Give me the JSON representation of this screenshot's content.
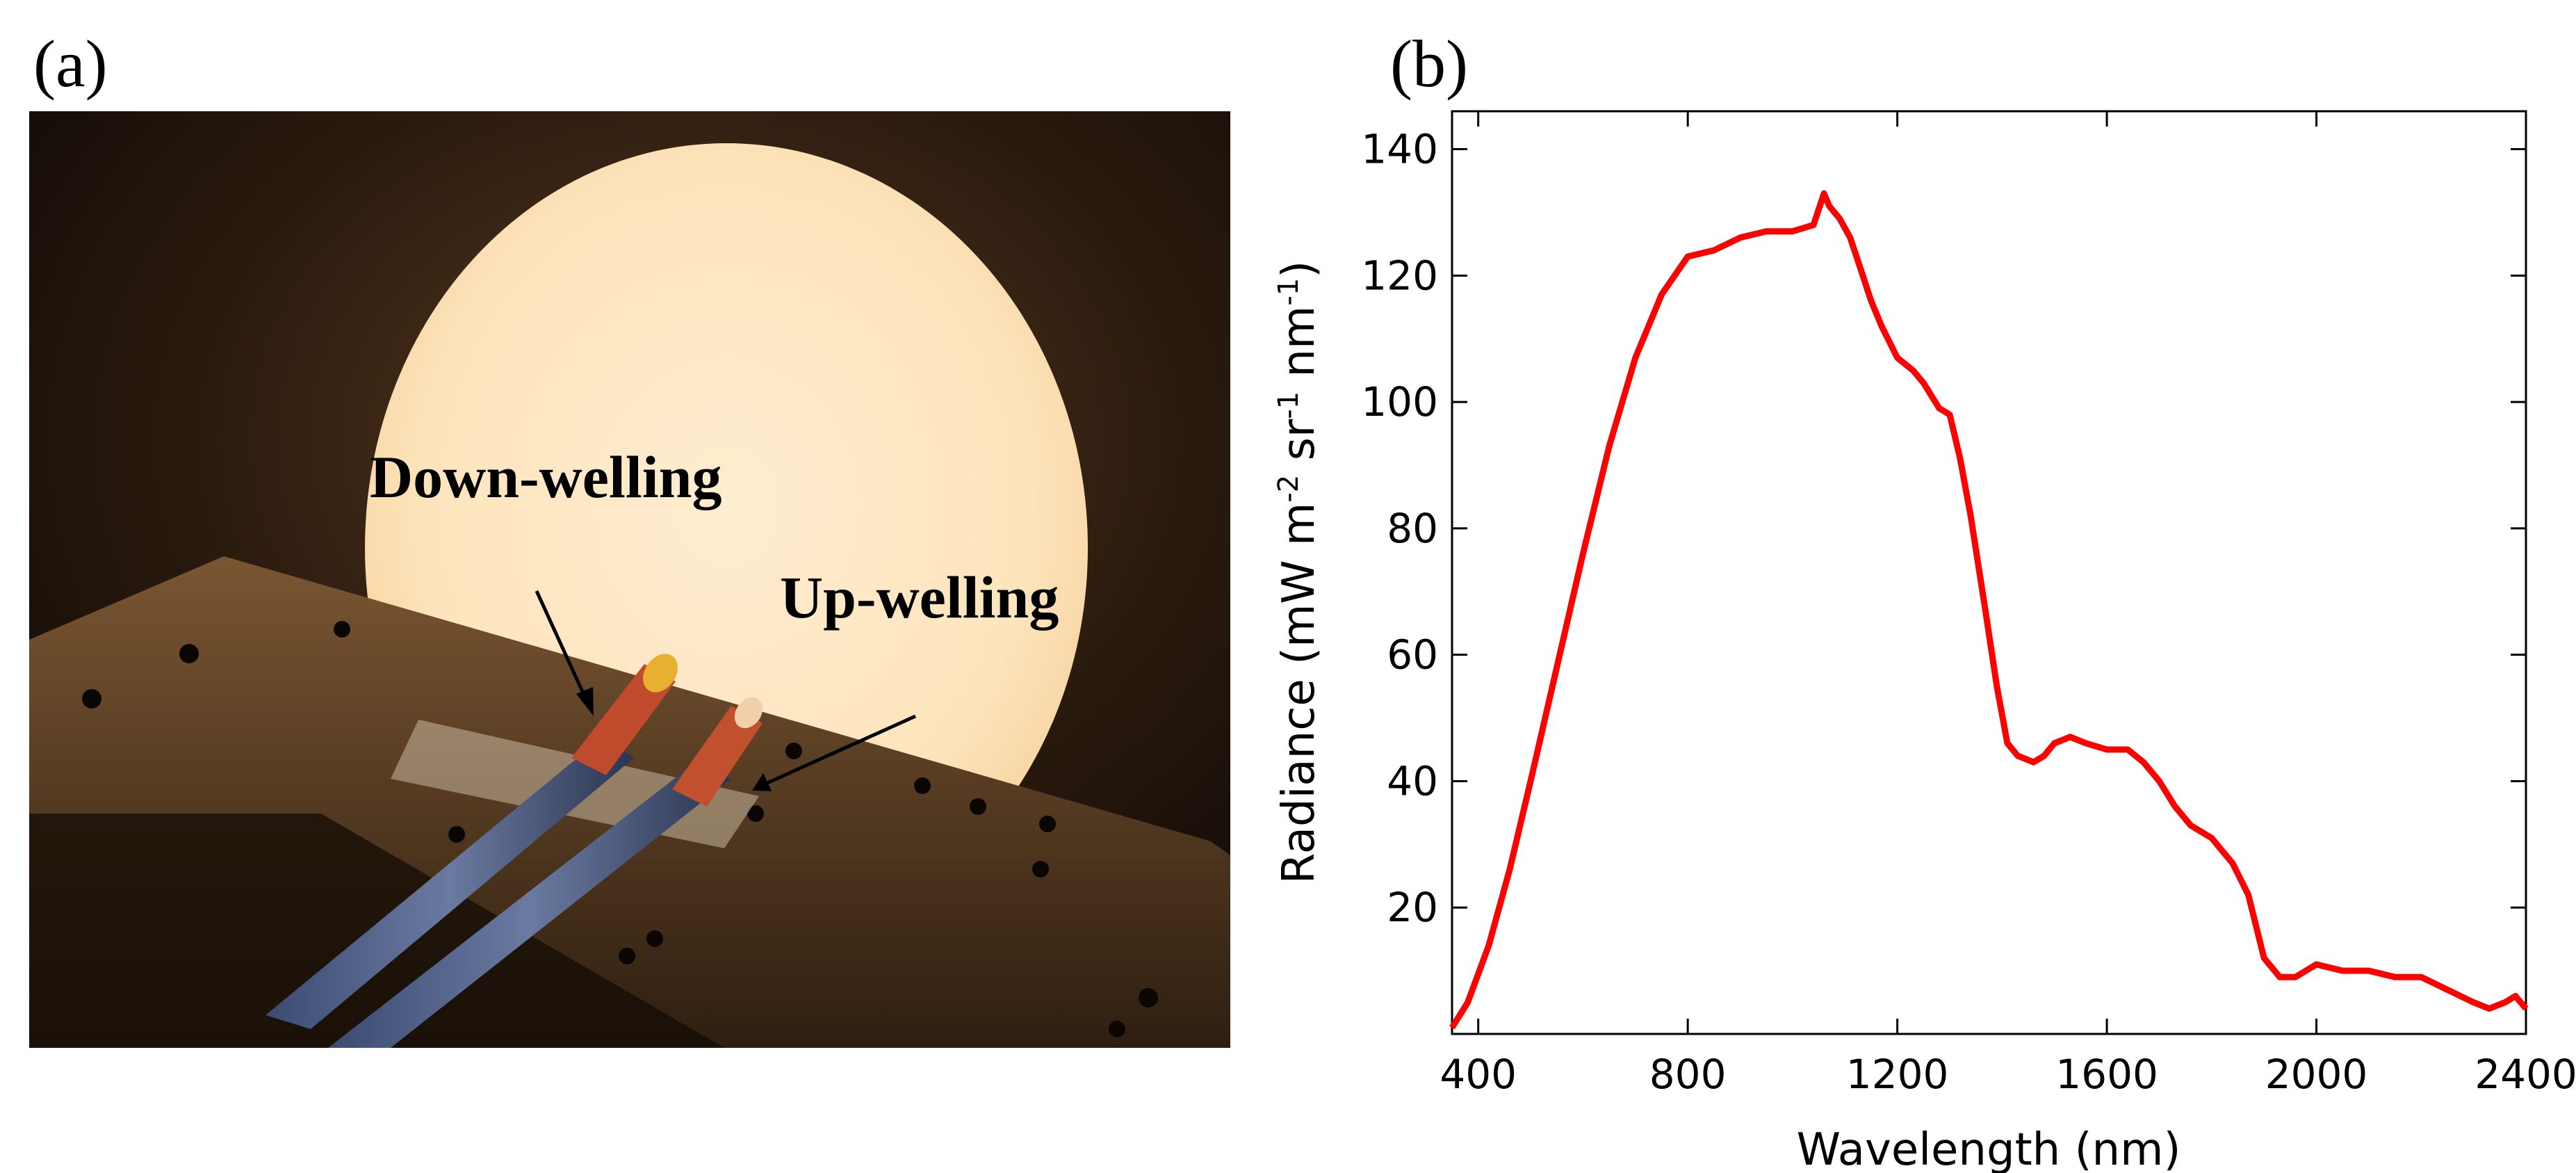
{
  "panels": {
    "a": "(a)",
    "b": "(b)"
  },
  "photo": {
    "annotations": {
      "down": "Down-welling",
      "up": "Up-welling"
    }
  },
  "colors": {
    "curve": "#ff0000",
    "axis": "#000000",
    "annotation": "#000000"
  },
  "chart_data": {
    "type": "line",
    "title": "",
    "xlabel": "Wavelength (nm)",
    "ylabel_parts": [
      "Radiance (mW m",
      "-2",
      " sr",
      "-1",
      " nm",
      "-1",
      ")"
    ],
    "xlim": [
      350,
      2400
    ],
    "ylim": [
      0,
      146
    ],
    "xticks": [
      400,
      800,
      1200,
      1600,
      2000,
      2400
    ],
    "yticks": [
      20,
      40,
      60,
      80,
      100,
      120,
      140
    ],
    "series": [
      {
        "name": "Radiance",
        "x": [
          350,
          380,
          420,
          460,
          500,
          550,
          600,
          650,
          700,
          750,
          800,
          850,
          900,
          950,
          1000,
          1040,
          1060,
          1070,
          1090,
          1110,
          1130,
          1150,
          1170,
          1200,
          1230,
          1250,
          1280,
          1300,
          1320,
          1340,
          1370,
          1390,
          1410,
          1430,
          1460,
          1480,
          1500,
          1530,
          1560,
          1600,
          1640,
          1670,
          1700,
          1730,
          1760,
          1800,
          1840,
          1870,
          1900,
          1930,
          1960,
          2000,
          2050,
          2100,
          2150,
          2200,
          2250,
          2300,
          2330,
          2360,
          2380,
          2400
        ],
        "values": [
          1,
          5,
          14,
          26,
          40,
          58,
          76,
          93,
          107,
          117,
          123,
          124,
          126,
          127,
          127,
          128,
          133,
          131,
          129,
          126,
          121,
          116,
          112,
          107,
          105,
          103,
          99,
          98,
          91,
          82,
          66,
          55,
          46,
          44,
          43,
          44,
          46,
          47,
          46,
          45,
          45,
          43,
          40,
          36,
          33,
          31,
          27,
          22,
          12,
          9,
          9,
          11,
          10,
          10,
          9,
          9,
          7,
          5,
          4,
          5,
          6,
          4
        ]
      }
    ]
  }
}
